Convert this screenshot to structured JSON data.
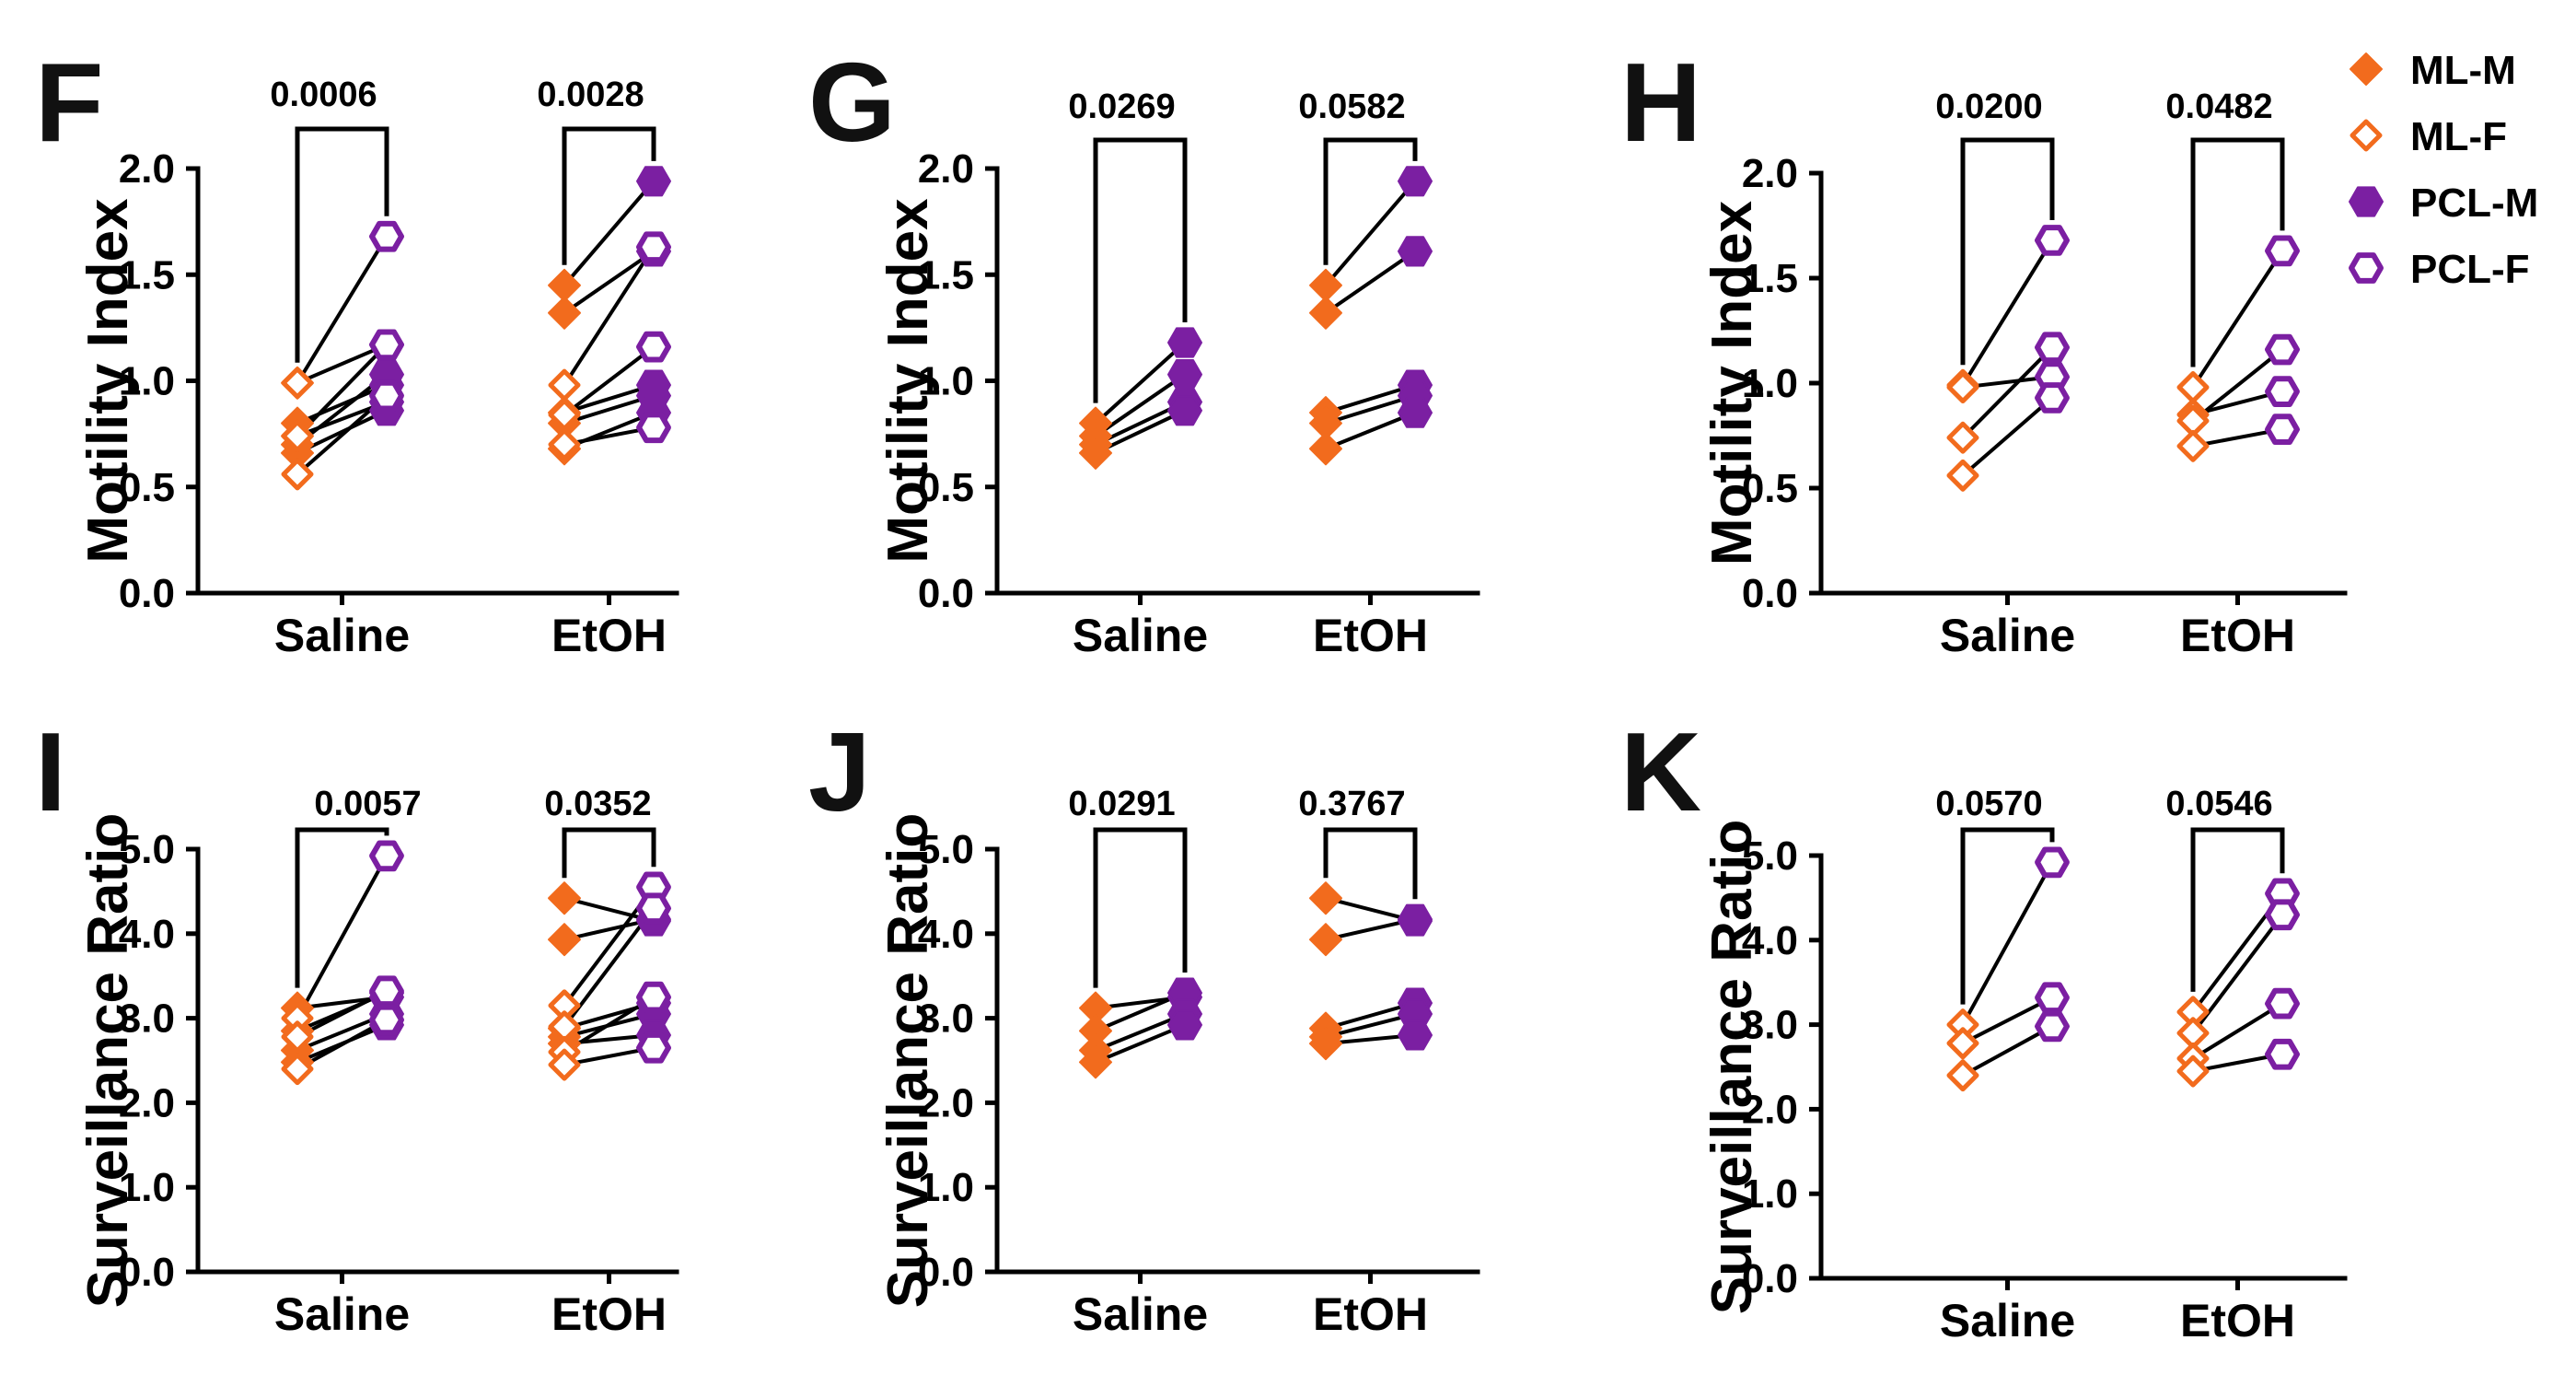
{
  "legend": [
    {
      "label": "ML-M",
      "marker": "diamond",
      "filled": true,
      "color": "#F26B1D"
    },
    {
      "label": "ML-F",
      "marker": "diamond",
      "filled": false,
      "color": "#F26B1D"
    },
    {
      "label": "PCL-M",
      "marker": "hexagon",
      "filled": true,
      "color": "#7B1FA2"
    },
    {
      "label": "PCL-F",
      "marker": "hexagon",
      "filled": false,
      "color": "#7B1FA2"
    }
  ],
  "chart_data": [
    {
      "panel": "F",
      "type": "scatter",
      "ylabel": "Motility Index",
      "ylim": [
        0,
        2
      ],
      "yticks": [
        "0.0",
        "0.5",
        "1.0",
        "1.5",
        "2.0"
      ],
      "ytick_values": [
        0,
        0.5,
        1,
        1.5,
        2
      ],
      "categories": [
        "Saline",
        "EtOH"
      ],
      "groups": [
        {
          "category": "Saline",
          "pvalue": "0.0006",
          "pairs": [
            {
              "ml": 0.99,
              "pcl": 1.17,
              "sex": "M"
            },
            {
              "ml": 0.8,
              "pcl": 0.98,
              "sex": "M"
            },
            {
              "ml": 0.74,
              "pcl": 0.9,
              "sex": "M"
            },
            {
              "ml": 0.7,
              "pcl": 1.03,
              "sex": "M"
            },
            {
              "ml": 0.66,
              "pcl": 0.86,
              "sex": "M"
            },
            {
              "ml": 0.99,
              "pcl": 1.68,
              "sex": "F"
            },
            {
              "ml": 0.74,
              "pcl": 1.17,
              "sex": "F"
            },
            {
              "ml": 0.56,
              "pcl": 0.93,
              "sex": "F"
            }
          ]
        },
        {
          "category": "EtOH",
          "pvalue": "0.0028",
          "pairs": [
            {
              "ml": 1.45,
              "pcl": 1.94,
              "sex": "M"
            },
            {
              "ml": 1.32,
              "pcl": 1.61,
              "sex": "M"
            },
            {
              "ml": 0.85,
              "pcl": 0.98,
              "sex": "M"
            },
            {
              "ml": 0.8,
              "pcl": 0.93,
              "sex": "M"
            },
            {
              "ml": 0.68,
              "pcl": 0.85,
              "sex": "M"
            },
            {
              "ml": 0.98,
              "pcl": 1.63,
              "sex": "F"
            },
            {
              "ml": 0.84,
              "pcl": 1.16,
              "sex": "F"
            },
            {
              "ml": 0.7,
              "pcl": 0.78,
              "sex": "F"
            }
          ]
        }
      ]
    },
    {
      "panel": "G",
      "type": "scatter",
      "ylabel": "Motility Index",
      "ylim": [
        0,
        2
      ],
      "yticks": [
        "0.0",
        "0.5",
        "1.0",
        "1.5",
        "2.0"
      ],
      "ytick_values": [
        0,
        0.5,
        1,
        1.5,
        2
      ],
      "categories": [
        "Saline",
        "EtOH"
      ],
      "groups": [
        {
          "category": "Saline",
          "pvalue": "0.0269",
          "pairs": [
            {
              "ml": 0.8,
              "pcl": 1.18,
              "sex": "M"
            },
            {
              "ml": 0.74,
              "pcl": 1.03,
              "sex": "M"
            },
            {
              "ml": 0.7,
              "pcl": 0.9,
              "sex": "M"
            },
            {
              "ml": 0.66,
              "pcl": 0.86,
              "sex": "M"
            }
          ]
        },
        {
          "category": "EtOH",
          "pvalue": "0.0582",
          "pairs": [
            {
              "ml": 1.45,
              "pcl": 1.94,
              "sex": "M"
            },
            {
              "ml": 1.32,
              "pcl": 1.61,
              "sex": "M"
            },
            {
              "ml": 0.85,
              "pcl": 0.98,
              "sex": "M"
            },
            {
              "ml": 0.8,
              "pcl": 0.93,
              "sex": "M"
            },
            {
              "ml": 0.68,
              "pcl": 0.85,
              "sex": "M"
            }
          ]
        }
      ]
    },
    {
      "panel": "H",
      "type": "scatter",
      "ylabel": "Motility Index",
      "ylim": [
        0,
        2
      ],
      "yticks": [
        "0.0",
        "0.5",
        "1.0",
        "1.5",
        "2.0"
      ],
      "ytick_values": [
        0,
        0.5,
        1,
        1.5,
        2
      ],
      "categories": [
        "Saline",
        "EtOH"
      ],
      "groups": [
        {
          "category": "Saline",
          "pvalue": "0.0200",
          "pairs": [
            {
              "ml": 0.99,
              "pcl": 1.68,
              "sex": "F"
            },
            {
              "ml": 0.98,
              "pcl": 1.03,
              "sex": "F"
            },
            {
              "ml": 0.74,
              "pcl": 1.17,
              "sex": "F"
            },
            {
              "ml": 0.56,
              "pcl": 0.93,
              "sex": "F"
            }
          ]
        },
        {
          "category": "EtOH",
          "pvalue": "0.0482",
          "pairs": [
            {
              "ml": 0.98,
              "pcl": 1.63,
              "sex": "F"
            },
            {
              "ml": 0.85,
              "pcl": 0.96,
              "sex": "F"
            },
            {
              "ml": 0.82,
              "pcl": 1.16,
              "sex": "F"
            },
            {
              "ml": 0.7,
              "pcl": 0.78,
              "sex": "F"
            }
          ]
        }
      ]
    },
    {
      "panel": "I",
      "type": "scatter",
      "ylabel": "Surveillance Ratio",
      "ylim": [
        0,
        5
      ],
      "yticks": [
        "0.0",
        "1.0",
        "2.0",
        "3.0",
        "4.0",
        "5.0"
      ],
      "ytick_values": [
        0,
        1,
        2,
        3,
        4,
        5
      ],
      "categories": [
        "Saline",
        "EtOH"
      ],
      "groups": [
        {
          "category": "Saline",
          "pvalue": "0.0057",
          "pairs": [
            {
              "ml": 3.12,
              "pcl": 3.25,
              "sex": "M"
            },
            {
              "ml": 2.85,
              "pcl": 3.3,
              "sex": "M"
            },
            {
              "ml": 2.62,
              "pcl": 3.05,
              "sex": "M"
            },
            {
              "ml": 2.48,
              "pcl": 2.92,
              "sex": "M"
            },
            {
              "ml": 3.0,
              "pcl": 4.92,
              "sex": "F"
            },
            {
              "ml": 2.78,
              "pcl": 3.32,
              "sex": "F"
            },
            {
              "ml": 2.4,
              "pcl": 2.98,
              "sex": "F"
            }
          ]
        },
        {
          "category": "EtOH",
          "pvalue": "0.0352",
          "pairs": [
            {
              "ml": 4.42,
              "pcl": 4.15,
              "sex": "M"
            },
            {
              "ml": 3.93,
              "pcl": 4.17,
              "sex": "M"
            },
            {
              "ml": 2.88,
              "pcl": 3.18,
              "sex": "M"
            },
            {
              "ml": 2.78,
              "pcl": 3.05,
              "sex": "M"
            },
            {
              "ml": 2.7,
              "pcl": 2.8,
              "sex": "M"
            },
            {
              "ml": 3.15,
              "pcl": 4.55,
              "sex": "F"
            },
            {
              "ml": 2.9,
              "pcl": 4.3,
              "sex": "F"
            },
            {
              "ml": 2.6,
              "pcl": 3.25,
              "sex": "F"
            },
            {
              "ml": 2.45,
              "pcl": 2.65,
              "sex": "F"
            }
          ]
        }
      ]
    },
    {
      "panel": "J",
      "type": "scatter",
      "ylabel": "Surveillance Ratio",
      "ylim": [
        0,
        5
      ],
      "yticks": [
        "0.0",
        "1.0",
        "2.0",
        "3.0",
        "4.0",
        "5.0"
      ],
      "ytick_values": [
        0,
        1,
        2,
        3,
        4,
        5
      ],
      "categories": [
        "Saline",
        "EtOH"
      ],
      "groups": [
        {
          "category": "Saline",
          "pvalue": "0.0291",
          "pairs": [
            {
              "ml": 3.12,
              "pcl": 3.25,
              "sex": "M"
            },
            {
              "ml": 2.85,
              "pcl": 3.3,
              "sex": "M"
            },
            {
              "ml": 2.62,
              "pcl": 3.05,
              "sex": "M"
            },
            {
              "ml": 2.48,
              "pcl": 2.92,
              "sex": "M"
            }
          ]
        },
        {
          "category": "EtOH",
          "pvalue": "0.3767",
          "pairs": [
            {
              "ml": 4.42,
              "pcl": 4.15,
              "sex": "M"
            },
            {
              "ml": 3.93,
              "pcl": 4.17,
              "sex": "M"
            },
            {
              "ml": 2.88,
              "pcl": 3.18,
              "sex": "M"
            },
            {
              "ml": 2.78,
              "pcl": 3.05,
              "sex": "M"
            },
            {
              "ml": 2.7,
              "pcl": 2.8,
              "sex": "M"
            }
          ]
        }
      ]
    },
    {
      "panel": "K",
      "type": "scatter",
      "ylabel": "Surveillance Ratio",
      "ylim": [
        0,
        5
      ],
      "yticks": [
        "0.0",
        "1.0",
        "2.0",
        "3.0",
        "4.0",
        "5.0"
      ],
      "ytick_values": [
        0,
        1,
        2,
        3,
        4,
        5
      ],
      "categories": [
        "Saline",
        "EtOH"
      ],
      "groups": [
        {
          "category": "Saline",
          "pvalue": "0.0570",
          "pairs": [
            {
              "ml": 3.0,
              "pcl": 4.92,
              "sex": "F"
            },
            {
              "ml": 2.78,
              "pcl": 3.32,
              "sex": "F"
            },
            {
              "ml": 2.4,
              "pcl": 2.98,
              "sex": "F"
            }
          ]
        },
        {
          "category": "EtOH",
          "pvalue": "0.0546",
          "pairs": [
            {
              "ml": 3.15,
              "pcl": 4.55,
              "sex": "F"
            },
            {
              "ml": 2.9,
              "pcl": 4.3,
              "sex": "F"
            },
            {
              "ml": 2.6,
              "pcl": 3.25,
              "sex": "F"
            },
            {
              "ml": 2.45,
              "pcl": 2.65,
              "sex": "F"
            }
          ]
        }
      ]
    }
  ]
}
